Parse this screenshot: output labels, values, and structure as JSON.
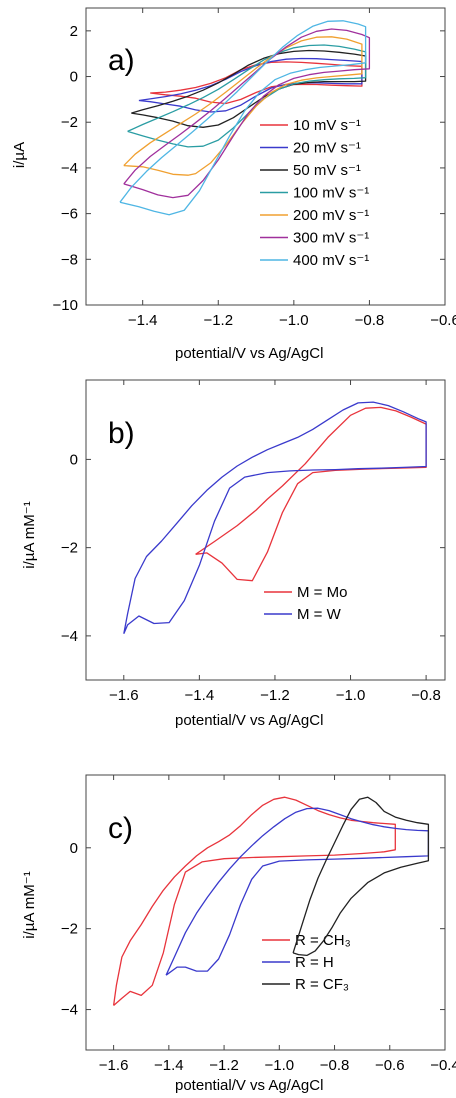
{
  "chart_data": [
    {
      "type": "line",
      "panel_label": "a)",
      "xlabel": "potential/V vs Ag/AgCl",
      "ylabel": "i/µA",
      "xlim": [
        -1.55,
        -0.6
      ],
      "ylim": [
        -10,
        3
      ],
      "xticks": [
        -1.4,
        -1.2,
        -1.0,
        -0.8,
        -0.6
      ],
      "xtick_labels": [
        "−1.4",
        "−1.2",
        "−1.0",
        "−0.8",
        "−0.6"
      ],
      "yticks": [
        2,
        0,
        -2,
        -4,
        -6,
        -8,
        -10
      ],
      "ytick_labels": [
        "2",
        "0",
        "−2",
        "−4",
        "−6",
        "−8",
        "−10"
      ],
      "legend_position": "bottom-right",
      "series": [
        {
          "name": "10 mV s⁻¹",
          "color": "#e8343c",
          "x": [
            -1.38,
            -1.34,
            -1.3,
            -1.26,
            -1.22,
            -1.18,
            -1.14,
            -1.1,
            -1.06,
            -1.02,
            -0.98,
            -0.94,
            -0.9,
            -0.86,
            -0.82,
            -0.82,
            -0.86,
            -0.9,
            -0.94,
            -0.98,
            -1.02,
            -1.06,
            -1.1,
            -1.14,
            -1.18,
            -1.22,
            -1.26,
            -1.3,
            -1.34,
            -1.38
          ],
          "y": [
            -0.72,
            -0.68,
            -0.6,
            -0.48,
            -0.3,
            -0.05,
            0.3,
            0.52,
            0.62,
            0.64,
            0.62,
            0.58,
            0.53,
            0.48,
            0.45,
            -0.42,
            -0.4,
            -0.38,
            -0.35,
            -0.34,
            -0.36,
            -0.45,
            -0.7,
            -1.0,
            -1.18,
            -1.12,
            -0.95,
            -0.86,
            -0.8,
            -0.72
          ]
        },
        {
          "name": "20 mV s⁻¹",
          "color": "#3a3acc",
          "x": [
            -1.41,
            -1.38,
            -1.34,
            -1.3,
            -1.26,
            -1.22,
            -1.18,
            -1.14,
            -1.1,
            -1.06,
            -1.02,
            -0.98,
            -0.94,
            -0.9,
            -0.86,
            -0.82,
            -0.82,
            -0.86,
            -0.9,
            -0.94,
            -0.98,
            -1.02,
            -1.06,
            -1.1,
            -1.14,
            -1.18,
            -1.22,
            -1.26,
            -1.3,
            -1.34,
            -1.38,
            -1.41
          ],
          "y": [
            -1.05,
            -0.98,
            -0.88,
            -0.76,
            -0.6,
            -0.4,
            -0.12,
            0.22,
            0.48,
            0.66,
            0.76,
            0.79,
            0.78,
            0.74,
            0.7,
            0.66,
            -0.32,
            -0.32,
            -0.3,
            -0.28,
            -0.28,
            -0.34,
            -0.5,
            -0.85,
            -1.25,
            -1.5,
            -1.55,
            -1.46,
            -1.3,
            -1.2,
            -1.1,
            -1.05
          ]
        },
        {
          "name": "50 mV s⁻¹",
          "color": "#222222",
          "x": [
            -1.43,
            -1.4,
            -1.36,
            -1.32,
            -1.28,
            -1.24,
            -1.2,
            -1.16,
            -1.12,
            -1.08,
            -1.04,
            -1.0,
            -0.96,
            -0.92,
            -0.88,
            -0.84,
            -0.81,
            -0.81,
            -0.84,
            -0.88,
            -0.92,
            -0.96,
            -1.0,
            -1.04,
            -1.08,
            -1.12,
            -1.16,
            -1.2,
            -1.24,
            -1.28,
            -1.32,
            -1.36,
            -1.4,
            -1.43
          ],
          "y": [
            -1.6,
            -1.45,
            -1.28,
            -1.08,
            -0.86,
            -0.6,
            -0.28,
            0.1,
            0.5,
            0.8,
            1.0,
            1.1,
            1.14,
            1.12,
            1.06,
            0.98,
            0.9,
            -0.2,
            -0.22,
            -0.22,
            -0.22,
            -0.26,
            -0.34,
            -0.55,
            -0.9,
            -1.35,
            -1.8,
            -2.12,
            -2.22,
            -2.15,
            -1.95,
            -1.8,
            -1.68,
            -1.6
          ]
        },
        {
          "name": "100 mV s⁻¹",
          "color": "#2a9da3",
          "x": [
            -1.44,
            -1.4,
            -1.36,
            -1.32,
            -1.28,
            -1.24,
            -1.2,
            -1.16,
            -1.12,
            -1.08,
            -1.04,
            -1.0,
            -0.96,
            -0.92,
            -0.88,
            -0.84,
            -0.81,
            -0.81,
            -0.84,
            -0.88,
            -0.92,
            -0.96,
            -1.0,
            -1.04,
            -1.08,
            -1.12,
            -1.16,
            -1.2,
            -1.24,
            -1.28,
            -1.32,
            -1.36,
            -1.4,
            -1.44
          ],
          "y": [
            -2.4,
            -2.1,
            -1.82,
            -1.54,
            -1.24,
            -0.92,
            -0.56,
            -0.14,
            0.3,
            0.72,
            1.04,
            1.26,
            1.36,
            1.38,
            1.32,
            1.2,
            1.08,
            -0.05,
            -0.08,
            -0.1,
            -0.14,
            -0.2,
            -0.32,
            -0.56,
            -0.98,
            -1.6,
            -2.25,
            -2.78,
            -3.05,
            -3.08,
            -2.95,
            -2.78,
            -2.6,
            -2.4
          ]
        },
        {
          "name": "200 mV s⁻¹",
          "color": "#f0a030",
          "x": [
            -1.45,
            -1.42,
            -1.38,
            -1.34,
            -1.3,
            -1.26,
            -1.22,
            -1.18,
            -1.14,
            -1.1,
            -1.06,
            -1.02,
            -0.98,
            -0.94,
            -0.9,
            -0.86,
            -0.82,
            -0.82,
            -0.86,
            -0.9,
            -0.94,
            -0.98,
            -1.02,
            -1.06,
            -1.1,
            -1.14,
            -1.18,
            -1.22,
            -1.26,
            -1.28,
            -1.32,
            -1.36,
            -1.4,
            -1.45
          ],
          "y": [
            -3.9,
            -3.4,
            -2.9,
            -2.48,
            -2.06,
            -1.64,
            -1.18,
            -0.68,
            -0.16,
            0.36,
            0.86,
            1.26,
            1.56,
            1.72,
            1.74,
            1.64,
            1.42,
            0.12,
            0.06,
            0.0,
            -0.06,
            -0.16,
            -0.34,
            -0.7,
            -1.3,
            -2.1,
            -3.0,
            -3.78,
            -4.25,
            -4.32,
            -4.28,
            -4.1,
            -3.95,
            -3.9
          ]
        },
        {
          "name": "300 mV s⁻¹",
          "color": "#a0309c",
          "x": [
            -1.45,
            -1.42,
            -1.38,
            -1.34,
            -1.3,
            -1.26,
            -1.22,
            -1.18,
            -1.14,
            -1.1,
            -1.06,
            -1.02,
            -0.98,
            -0.94,
            -0.9,
            -0.86,
            -0.82,
            -0.8,
            -0.8,
            -0.84,
            -0.88,
            -0.92,
            -0.96,
            -1.0,
            -1.04,
            -1.08,
            -1.12,
            -1.16,
            -1.2,
            -1.24,
            -1.28,
            -1.32,
            -1.36,
            -1.4,
            -1.45
          ],
          "y": [
            -4.7,
            -4.1,
            -3.5,
            -3.0,
            -2.52,
            -2.02,
            -1.5,
            -0.94,
            -0.36,
            0.22,
            0.8,
            1.3,
            1.72,
            1.98,
            2.08,
            2.02,
            1.84,
            1.7,
            0.34,
            0.3,
            0.24,
            0.18,
            0.08,
            -0.08,
            -0.36,
            -0.86,
            -1.6,
            -2.6,
            -3.65,
            -4.55,
            -5.2,
            -5.3,
            -5.18,
            -4.95,
            -4.7
          ]
        },
        {
          "name": "400 mV s⁻¹",
          "color": "#4fb6e4",
          "x": [
            -1.46,
            -1.43,
            -1.39,
            -1.35,
            -1.31,
            -1.27,
            -1.23,
            -1.19,
            -1.15,
            -1.11,
            -1.07,
            -1.03,
            -0.99,
            -0.95,
            -0.91,
            -0.87,
            -0.83,
            -0.81,
            -0.81,
            -0.85,
            -0.89,
            -0.93,
            -0.97,
            -1.01,
            -1.05,
            -1.09,
            -1.13,
            -1.17,
            -1.21,
            -1.25,
            -1.29,
            -1.33,
            -1.37,
            -1.41,
            -1.46
          ],
          "y": [
            -5.5,
            -4.85,
            -4.15,
            -3.55,
            -3.0,
            -2.45,
            -1.88,
            -1.28,
            -0.66,
            0.0,
            0.66,
            1.28,
            1.8,
            2.2,
            2.42,
            2.44,
            2.3,
            2.18,
            0.6,
            0.52,
            0.46,
            0.4,
            0.3,
            0.14,
            -0.14,
            -0.68,
            -1.5,
            -2.6,
            -3.8,
            -5.0,
            -5.85,
            -6.05,
            -5.9,
            -5.7,
            -5.5
          ]
        }
      ]
    },
    {
      "type": "line",
      "panel_label": "b)",
      "xlabel": "potential/V vs Ag/AgCl",
      "ylabel": "i/µA mM⁻¹",
      "xlim": [
        -1.7,
        -0.75
      ],
      "ylim": [
        -5,
        1.8
      ],
      "xticks": [
        -1.6,
        -1.4,
        -1.2,
        -1.0,
        -0.8
      ],
      "xtick_labels": [
        "−1.6",
        "−1.4",
        "−1.2",
        "−1.0",
        "−0.8"
      ],
      "yticks": [
        0,
        -2,
        -4
      ],
      "ytick_labels": [
        "0",
        "−2",
        "−4"
      ],
      "legend_position": "bottom-right",
      "series": [
        {
          "name": "M = Mo",
          "color": "#e8343c",
          "x": [
            -1.41,
            -1.36,
            -1.3,
            -1.25,
            -1.22,
            -1.18,
            -1.12,
            -1.06,
            -1.0,
            -0.96,
            -0.92,
            -0.88,
            -0.84,
            -0.8,
            -0.8,
            -0.88,
            -0.96,
            -1.04,
            -1.1,
            -1.14,
            -1.18,
            -1.22,
            -1.26,
            -1.3,
            -1.34,
            -1.38,
            -1.41
          ],
          "y": [
            -2.15,
            -1.86,
            -1.5,
            -1.15,
            -0.9,
            -0.6,
            -0.1,
            0.5,
            1.0,
            1.16,
            1.18,
            1.1,
            0.96,
            0.8,
            -0.18,
            -0.2,
            -0.22,
            -0.25,
            -0.3,
            -0.55,
            -1.2,
            -2.1,
            -2.75,
            -2.72,
            -2.35,
            -2.12,
            -2.15
          ]
        },
        {
          "name": "M = W",
          "color": "#3a3acc",
          "x": [
            -1.6,
            -1.59,
            -1.57,
            -1.54,
            -1.5,
            -1.46,
            -1.42,
            -1.38,
            -1.34,
            -1.3,
            -1.26,
            -1.22,
            -1.18,
            -1.14,
            -1.1,
            -1.06,
            -1.02,
            -0.98,
            -0.94,
            -0.9,
            -0.86,
            -0.82,
            -0.8,
            -0.8,
            -0.86,
            -0.92,
            -0.98,
            -1.04,
            -1.1,
            -1.16,
            -1.22,
            -1.28,
            -1.32,
            -1.36,
            -1.4,
            -1.44,
            -1.48,
            -1.52,
            -1.56,
            -1.59,
            -1.6
          ],
          "y": [
            -3.95,
            -3.5,
            -2.7,
            -2.2,
            -1.85,
            -1.45,
            -1.05,
            -0.7,
            -0.4,
            -0.15,
            0.05,
            0.22,
            0.36,
            0.5,
            0.68,
            0.9,
            1.12,
            1.28,
            1.3,
            1.22,
            1.08,
            0.92,
            0.85,
            -0.16,
            -0.18,
            -0.2,
            -0.21,
            -0.23,
            -0.24,
            -0.26,
            -0.3,
            -0.4,
            -0.65,
            -1.4,
            -2.4,
            -3.2,
            -3.7,
            -3.72,
            -3.55,
            -3.75,
            -3.95
          ]
        }
      ]
    },
    {
      "type": "line",
      "panel_label": "c)",
      "xlabel": "potential/V vs Ag/AgCl",
      "ylabel": "i/µA mM⁻¹",
      "xlim": [
        -1.7,
        -0.4
      ],
      "ylim": [
        -5,
        1.8
      ],
      "xticks": [
        -1.6,
        -1.4,
        -1.2,
        -1.0,
        -0.8,
        -0.6,
        -0.4
      ],
      "xtick_labels": [
        "−1.6",
        "−1.4",
        "−1.2",
        "−1.0",
        "−0.8",
        "−0.6",
        "−0.4"
      ],
      "yticks": [
        0,
        -2,
        -4
      ],
      "ytick_labels": [
        "0",
        "−2",
        "−4"
      ],
      "legend_position": "bottom-right",
      "series": [
        {
          "name": "R = CH₃",
          "color": "#e8343c",
          "x": [
            -1.6,
            -1.59,
            -1.57,
            -1.54,
            -1.5,
            -1.46,
            -1.42,
            -1.38,
            -1.34,
            -1.3,
            -1.26,
            -1.22,
            -1.18,
            -1.14,
            -1.1,
            -1.06,
            -1.02,
            -0.98,
            -0.94,
            -0.9,
            -0.86,
            -0.82,
            -0.78,
            -0.74,
            -0.7,
            -0.66,
            -0.62,
            -0.58,
            -0.58,
            -0.62,
            -0.7,
            -0.8,
            -0.9,
            -1.0,
            -1.1,
            -1.2,
            -1.28,
            -1.34,
            -1.38,
            -1.42,
            -1.46,
            -1.5,
            -1.54,
            -1.57,
            -1.6
          ],
          "y": [
            -3.9,
            -3.4,
            -2.7,
            -2.3,
            -1.9,
            -1.45,
            -1.05,
            -0.72,
            -0.45,
            -0.2,
            0.0,
            0.15,
            0.32,
            0.55,
            0.82,
            1.05,
            1.2,
            1.25,
            1.18,
            1.05,
            0.92,
            0.82,
            0.74,
            0.68,
            0.65,
            0.62,
            0.6,
            0.58,
            -0.05,
            -0.1,
            -0.14,
            -0.18,
            -0.2,
            -0.22,
            -0.24,
            -0.27,
            -0.35,
            -0.6,
            -1.4,
            -2.6,
            -3.4,
            -3.65,
            -3.55,
            -3.72,
            -3.9
          ]
        },
        {
          "name": "R = H",
          "color": "#3a3acc",
          "x": [
            -1.41,
            -1.38,
            -1.34,
            -1.3,
            -1.26,
            -1.22,
            -1.18,
            -1.14,
            -1.1,
            -1.06,
            -1.02,
            -0.98,
            -0.94,
            -0.9,
            -0.86,
            -0.82,
            -0.78,
            -0.74,
            -0.7,
            -0.66,
            -0.62,
            -0.58,
            -0.54,
            -0.5,
            -0.46,
            -0.46,
            -0.54,
            -0.62,
            -0.7,
            -0.8,
            -0.9,
            -1.0,
            -1.06,
            -1.1,
            -1.14,
            -1.18,
            -1.22,
            -1.26,
            -1.3,
            -1.34,
            -1.37,
            -1.41
          ],
          "y": [
            -3.15,
            -2.7,
            -2.1,
            -1.62,
            -1.22,
            -0.85,
            -0.52,
            -0.22,
            0.05,
            0.3,
            0.52,
            0.72,
            0.88,
            0.97,
            0.98,
            0.92,
            0.82,
            0.72,
            0.64,
            0.57,
            0.52,
            0.48,
            0.45,
            0.43,
            0.42,
            -0.2,
            -0.22,
            -0.24,
            -0.26,
            -0.28,
            -0.3,
            -0.33,
            -0.45,
            -0.78,
            -1.4,
            -2.15,
            -2.75,
            -3.05,
            -3.05,
            -2.95,
            -2.95,
            -3.15
          ]
        },
        {
          "name": "R = CF₃",
          "color": "#222222",
          "x": [
            -0.95,
            -0.92,
            -0.89,
            -0.86,
            -0.83,
            -0.8,
            -0.77,
            -0.74,
            -0.71,
            -0.68,
            -0.65,
            -0.62,
            -0.58,
            -0.54,
            -0.5,
            -0.46,
            -0.46,
            -0.5,
            -0.56,
            -0.62,
            -0.68,
            -0.74,
            -0.78,
            -0.81,
            -0.84,
            -0.87,
            -0.9,
            -0.93,
            -0.95
          ],
          "y": [
            -2.6,
            -1.95,
            -1.3,
            -0.75,
            -0.3,
            0.12,
            0.55,
            0.95,
            1.2,
            1.25,
            1.12,
            0.9,
            0.76,
            0.68,
            0.62,
            0.58,
            -0.32,
            -0.38,
            -0.48,
            -0.62,
            -0.86,
            -1.25,
            -1.62,
            -1.98,
            -2.3,
            -2.55,
            -2.66,
            -2.64,
            -2.6
          ]
        }
      ]
    }
  ]
}
